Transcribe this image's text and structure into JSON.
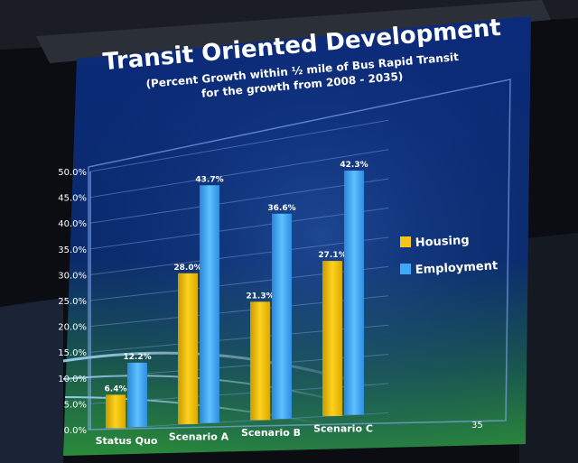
{
  "slide": {
    "title": "Transit Oriented Development",
    "subtitle_line1": "(Percent Growth within ½ mile of Bus Rapid Transit",
    "subtitle_line2": "for the growth from 2008 - 2035)",
    "page_number": "35"
  },
  "colors": {
    "housing": "#f5c518",
    "employment": "#3fa9f5",
    "slide_bg_top": "#0b2a7a",
    "slide_bg_bottom": "#1f7a3a"
  },
  "chart_data": {
    "type": "bar",
    "title": "Transit Oriented Development",
    "categories": [
      "Status Quo",
      "Scenario A",
      "Scenario B",
      "Scenario C"
    ],
    "series": [
      {
        "name": "Housing",
        "values": [
          6.4,
          28.0,
          21.3,
          27.1
        ],
        "labels": [
          "6.4%",
          "28.0%",
          "21.3%",
          "27.1%"
        ]
      },
      {
        "name": "Employment",
        "values": [
          12.2,
          43.7,
          36.6,
          42.3
        ],
        "labels": [
          "12.2%",
          "43.7%",
          "36.6%",
          "42.3%"
        ]
      }
    ],
    "ylim": [
      0,
      50
    ],
    "yticks": [
      "0.0%",
      "5.0%",
      "10.0%",
      "15.0%",
      "20.0%",
      "25.0%",
      "30.0%",
      "35.0%",
      "40.0%",
      "45.0%",
      "50.0%"
    ],
    "grid": true,
    "legend_position": "right",
    "xlabel": "",
    "ylabel": ""
  }
}
